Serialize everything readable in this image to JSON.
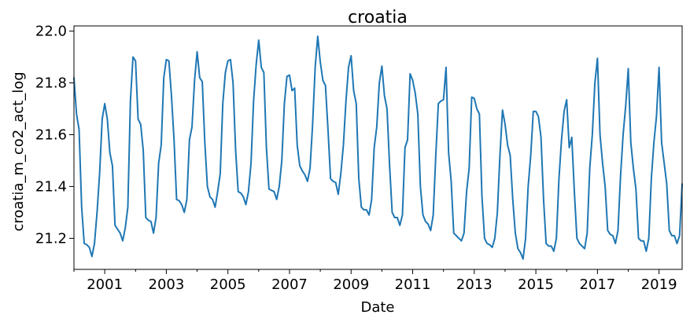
{
  "chart_data": {
    "type": "line",
    "title": "croatia",
    "xlabel": "Date",
    "ylabel": "croatia_m_co2_act_log",
    "xlim": [
      "2000-01-01",
      "2019-10-01"
    ],
    "ylim": [
      21.08,
      22.02
    ],
    "x_ticks": [
      "2001",
      "2003",
      "2005",
      "2007",
      "2009",
      "2011",
      "2013",
      "2015",
      "2017",
      "2019"
    ],
    "y_ticks": [
      "21.2",
      "21.4",
      "21.6",
      "21.8",
      "22.0"
    ],
    "grid": false,
    "legend": "none",
    "series": [
      {
        "color": "#1f77b4",
        "x": [
          "2000-01",
          "2000-02",
          "2000-03",
          "2000-04",
          "2000-05",
          "2000-06",
          "2000-07",
          "2000-08",
          "2000-09",
          "2000-10",
          "2000-11",
          "2000-12",
          "2001-01",
          "2001-02",
          "2001-03",
          "2001-04",
          "2001-05",
          "2001-06",
          "2001-07",
          "2001-08",
          "2001-09",
          "2001-10",
          "2001-11",
          "2001-12",
          "2002-01",
          "2002-02",
          "2002-03",
          "2002-04",
          "2002-05",
          "2002-06",
          "2002-07",
          "2002-08",
          "2002-09",
          "2002-10",
          "2002-11",
          "2002-12",
          "2003-01",
          "2003-02",
          "2003-03",
          "2003-04",
          "2003-05",
          "2003-06",
          "2003-07",
          "2003-08",
          "2003-09",
          "2003-10",
          "2003-11",
          "2003-12",
          "2004-01",
          "2004-02",
          "2004-03",
          "2004-04",
          "2004-05",
          "2004-06",
          "2004-07",
          "2004-08",
          "2004-09",
          "2004-10",
          "2004-11",
          "2004-12",
          "2005-01",
          "2005-02",
          "2005-03",
          "2005-04",
          "2005-05",
          "2005-06",
          "2005-07",
          "2005-08",
          "2005-09",
          "2005-10",
          "2005-11",
          "2005-12",
          "2006-01",
          "2006-02",
          "2006-03",
          "2006-04",
          "2006-05",
          "2006-06",
          "2006-07",
          "2006-08",
          "2006-09",
          "2006-10",
          "2006-11",
          "2006-12",
          "2007-01",
          "2007-02",
          "2007-03",
          "2007-04",
          "2007-05",
          "2007-06",
          "2007-07",
          "2007-08",
          "2007-09",
          "2007-10",
          "2007-11",
          "2007-12",
          "2008-01",
          "2008-02",
          "2008-03",
          "2008-04",
          "2008-05",
          "2008-06",
          "2008-07",
          "2008-08",
          "2008-09",
          "2008-10",
          "2008-11",
          "2008-12",
          "2009-01",
          "2009-02",
          "2009-03",
          "2009-04",
          "2009-05",
          "2009-06",
          "2009-07",
          "2009-08",
          "2009-09",
          "2009-10",
          "2009-11",
          "2009-12",
          "2010-01",
          "2010-02",
          "2010-03",
          "2010-04",
          "2010-05",
          "2010-06",
          "2010-07",
          "2010-08",
          "2010-09",
          "2010-10",
          "2010-11",
          "2010-12",
          "2011-01",
          "2011-02",
          "2011-03",
          "2011-04",
          "2011-05",
          "2011-06",
          "2011-07",
          "2011-08",
          "2011-09",
          "2011-10",
          "2011-11",
          "2011-12",
          "2012-01",
          "2012-02",
          "2012-03",
          "2012-04",
          "2012-05",
          "2012-06",
          "2012-07",
          "2012-08",
          "2012-09",
          "2012-10",
          "2012-11",
          "2012-12",
          "2013-01",
          "2013-02",
          "2013-03",
          "2013-04",
          "2013-05",
          "2013-06",
          "2013-07",
          "2013-08",
          "2013-09",
          "2013-10",
          "2013-11",
          "2013-12",
          "2014-01",
          "2014-02",
          "2014-03",
          "2014-04",
          "2014-05",
          "2014-06",
          "2014-07",
          "2014-08",
          "2014-09",
          "2014-10",
          "2014-11",
          "2014-12",
          "2015-01",
          "2015-02",
          "2015-03",
          "2015-04",
          "2015-05",
          "2015-06",
          "2015-07",
          "2015-08",
          "2015-09",
          "2015-10",
          "2015-11",
          "2015-12",
          "2016-01",
          "2016-02",
          "2016-03",
          "2016-04",
          "2016-05",
          "2016-06",
          "2016-07",
          "2016-08",
          "2016-09",
          "2016-10",
          "2016-11",
          "2016-12",
          "2017-01",
          "2017-02",
          "2017-03",
          "2017-04",
          "2017-05",
          "2017-06",
          "2017-07",
          "2017-08",
          "2017-09",
          "2017-10",
          "2017-11",
          "2017-12",
          "2018-01",
          "2018-02",
          "2018-03",
          "2018-04",
          "2018-05",
          "2018-06",
          "2018-07",
          "2018-08",
          "2018-09",
          "2018-10",
          "2018-11",
          "2018-12",
          "2019-01",
          "2019-02",
          "2019-03",
          "2019-04",
          "2019-05",
          "2019-06",
          "2019-07",
          "2019-08",
          "2019-09",
          "2019-10"
        ],
        "y": [
          21.82,
          21.68,
          21.62,
          21.32,
          21.18,
          21.175,
          21.165,
          21.13,
          21.18,
          21.3,
          21.45,
          21.66,
          21.72,
          21.66,
          21.53,
          21.48,
          21.25,
          21.235,
          21.22,
          21.19,
          21.24,
          21.32,
          21.73,
          21.9,
          21.885,
          21.66,
          21.64,
          21.54,
          21.28,
          21.27,
          21.265,
          21.22,
          21.28,
          21.49,
          21.56,
          21.82,
          21.89,
          21.885,
          21.75,
          21.58,
          21.35,
          21.345,
          21.33,
          21.3,
          21.35,
          21.58,
          21.63,
          21.81,
          21.92,
          21.82,
          21.805,
          21.57,
          21.4,
          21.36,
          21.35,
          21.32,
          21.38,
          21.45,
          21.72,
          21.84,
          21.885,
          21.89,
          21.8,
          21.54,
          21.38,
          21.375,
          21.36,
          21.33,
          21.38,
          21.49,
          21.73,
          21.87,
          21.965,
          21.86,
          21.84,
          21.55,
          21.39,
          21.385,
          21.38,
          21.35,
          21.4,
          21.5,
          21.72,
          21.825,
          21.83,
          21.77,
          21.78,
          21.56,
          21.48,
          21.46,
          21.445,
          21.42,
          21.47,
          21.64,
          21.86,
          21.98,
          21.88,
          21.81,
          21.79,
          21.62,
          21.43,
          21.42,
          21.415,
          21.37,
          21.45,
          21.56,
          21.73,
          21.86,
          21.905,
          21.77,
          21.72,
          21.43,
          21.32,
          21.31,
          21.31,
          21.29,
          21.35,
          21.55,
          21.63,
          21.8,
          21.865,
          21.75,
          21.7,
          21.48,
          21.3,
          21.28,
          21.28,
          21.25,
          21.29,
          21.55,
          21.58,
          21.835,
          21.81,
          21.76,
          21.68,
          21.4,
          21.29,
          21.265,
          21.255,
          21.23,
          21.29,
          21.52,
          21.72,
          21.73,
          21.735,
          21.86,
          21.53,
          21.42,
          21.22,
          21.21,
          21.2,
          21.19,
          21.22,
          21.38,
          21.47,
          21.745,
          21.74,
          21.7,
          21.68,
          21.36,
          21.2,
          21.18,
          21.175,
          21.165,
          21.2,
          21.3,
          21.52,
          21.695,
          21.64,
          21.56,
          21.52,
          21.35,
          21.22,
          21.16,
          21.145,
          21.12,
          21.2,
          21.4,
          21.52,
          21.69,
          21.69,
          21.67,
          21.59,
          21.35,
          21.18,
          21.17,
          21.17,
          21.15,
          21.2,
          21.43,
          21.58,
          21.69,
          21.735,
          21.55,
          21.59,
          21.38,
          21.2,
          21.18,
          21.17,
          21.16,
          21.22,
          21.47,
          21.6,
          21.8,
          21.895,
          21.6,
          21.49,
          21.4,
          21.23,
          21.215,
          21.21,
          21.18,
          21.23,
          21.44,
          21.6,
          21.71,
          21.855,
          21.57,
          21.47,
          21.39,
          21.2,
          21.19,
          21.19,
          21.15,
          21.2,
          21.43,
          21.57,
          21.67,
          21.86,
          21.57,
          21.49,
          21.41,
          21.23,
          21.21,
          21.21,
          21.18,
          21.21,
          21.41
        ]
      }
    ]
  }
}
